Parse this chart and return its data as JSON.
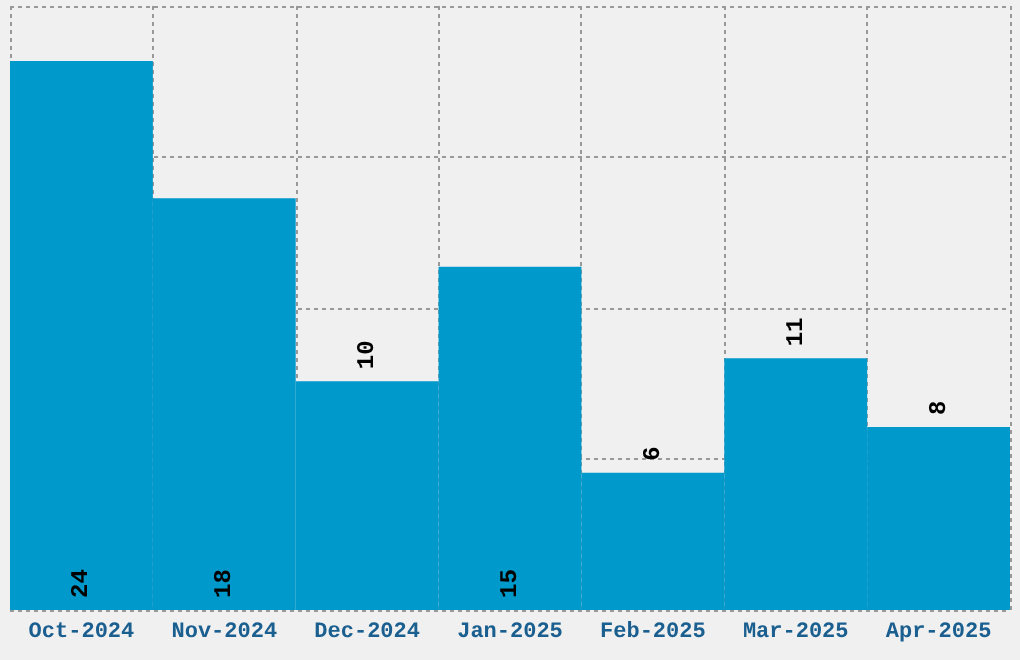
{
  "chart_data": {
    "type": "bar",
    "categories": [
      "Oct-2024",
      "Nov-2024",
      "Dec-2024",
      "Jan-2025",
      "Feb-2025",
      "Mar-2025",
      "Apr-2025"
    ],
    "values": [
      24,
      18,
      10,
      15,
      6,
      11,
      8
    ],
    "color": "#0099cc",
    "data_labels": true,
    "ylim": [
      0,
      26.4
    ],
    "yticks": [
      {
        "value": 0,
        "label": null
      },
      {
        "value": 6.6,
        "label": null
      },
      {
        "value": 13.2,
        "label": null
      },
      {
        "value": 19.8,
        "label": null
      },
      {
        "value": 26.4,
        "label": null
      }
    ],
    "tick_labels": "x",
    "grid": true
  }
}
